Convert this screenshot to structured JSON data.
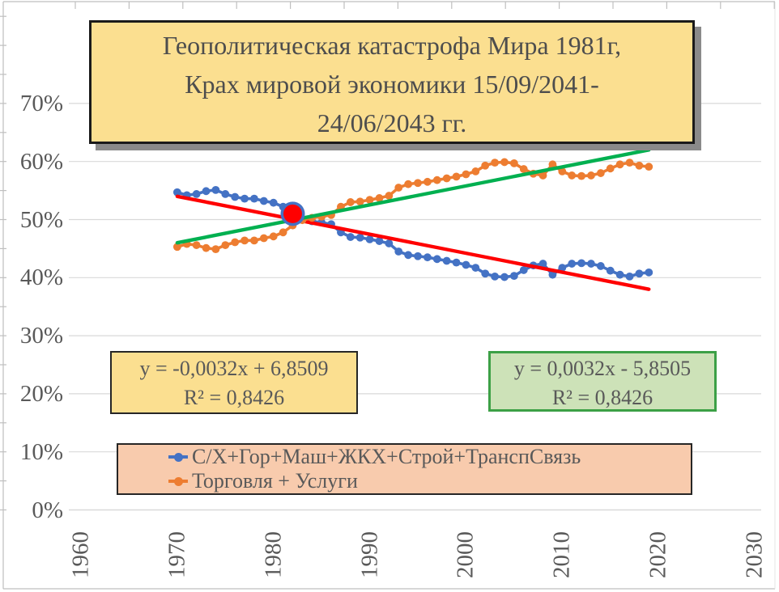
{
  "colors": {
    "series_blue": "#4472C4",
    "series_orange": "#ED7D31",
    "trend_red": "#FF0000",
    "trend_green": "#00B050",
    "gridline": "#D9D9D9",
    "axis_border": "#BFBFBF",
    "text_gray": "#595959",
    "title_fill": "#FBDF90",
    "eq1_fill": "#FBDF90",
    "eq2_fill": "#CDE2B8",
    "legend_fill": "#F8CBAD",
    "highlight_fill": "#FF0000"
  },
  "chart_data": {
    "type": "line",
    "title": "Геополитическая катастрофа Мира 1981г, Крах мировой экономики 15/09/2041-24/06/2043 гг.",
    "title_lines": [
      "Геополитическая катастрофа Мира 1981г,",
      "Крах мировой экономики 15/09/2041-",
      "24/06/2043 гг."
    ],
    "years": {
      "start": 1970,
      "end": 2019,
      "step": 1
    },
    "series": [
      {
        "name": "С/Х+Гор+Маш+ЖКХ+Строй+ТранспСвязь",
        "color": "#4472C4",
        "values": [
          54.7,
          54.2,
          54.4,
          54.9,
          55.1,
          54.4,
          53.9,
          53.6,
          53.6,
          53.2,
          52.9,
          52.2,
          51.0,
          50.1,
          49.7,
          49.5,
          49.2,
          47.8,
          47.0,
          46.9,
          46.6,
          46.3,
          45.9,
          44.5,
          43.9,
          43.7,
          43.5,
          43.2,
          42.9,
          42.6,
          42.2,
          41.7,
          40.7,
          40.2,
          40.1,
          40.3,
          41.3,
          42.1,
          42.4,
          40.5,
          41.7,
          42.4,
          42.5,
          42.4,
          42.0,
          41.2,
          40.5,
          40.2,
          40.7,
          40.9
        ]
      },
      {
        "name": "Торговля + Услуги",
        "color": "#ED7D31",
        "values": [
          45.3,
          45.8,
          45.6,
          45.1,
          44.9,
          45.6,
          46.1,
          46.4,
          46.4,
          46.8,
          47.1,
          47.8,
          49.0,
          49.9,
          50.3,
          50.5,
          50.8,
          52.2,
          53.0,
          53.1,
          53.4,
          53.7,
          54.1,
          55.5,
          56.1,
          56.3,
          56.5,
          56.8,
          57.1,
          57.4,
          57.8,
          58.3,
          59.3,
          59.8,
          59.9,
          59.7,
          58.7,
          57.9,
          57.6,
          59.5,
          58.3,
          57.6,
          57.5,
          57.6,
          58.0,
          58.8,
          59.5,
          59.8,
          59.3,
          59.1
        ]
      }
    ],
    "trendlines": [
      {
        "equation": "y = -0,0032x + 6,8509",
        "r2": "R² = 0,8426",
        "color": "#FF0000",
        "x1": 1970,
        "y1": 54.0,
        "x2": 2019,
        "y2": 38.0
      },
      {
        "equation": "y = 0,0032x - 5,8505",
        "r2": "R² = 0,8426",
        "color": "#00B050",
        "x1": 1970,
        "y1": 46.0,
        "x2": 2019,
        "y2": 62.0
      }
    ],
    "highlight_point": {
      "year": 1982,
      "value": 51.0,
      "series_index": 0,
      "fill": "#FF0000",
      "ring": "#4472C4"
    },
    "x_ticks": [
      1960,
      1970,
      1980,
      1990,
      2000,
      2010,
      2020,
      2030
    ],
    "y_ticks": [
      {
        "value": 0,
        "label": "0%"
      },
      {
        "value": 10,
        "label": "10%"
      },
      {
        "value": 20,
        "label": "20%"
      },
      {
        "value": 30,
        "label": "30%"
      },
      {
        "value": 40,
        "label": "40%"
      },
      {
        "value": 50,
        "label": "50%"
      },
      {
        "value": 60,
        "label": "60%"
      },
      {
        "value": 70,
        "label": "70%"
      }
    ],
    "ylim": [
      0,
      87.5
    ],
    "xlim": [
      1958.7,
      2030.7
    ],
    "grid": "horizontal",
    "legend_position": "bottom-box"
  }
}
